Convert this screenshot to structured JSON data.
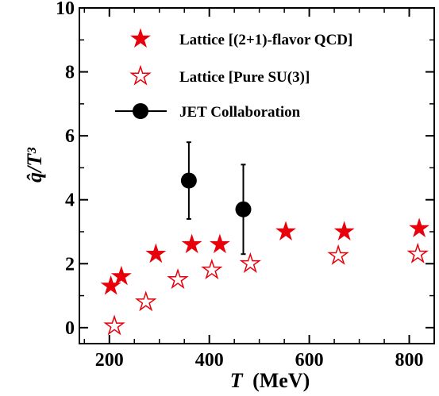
{
  "chart_data": {
    "type": "scatter",
    "xlabel_var": "T",
    "xlabel_unit": "(MeV)",
    "ylabel": "q̂/T³",
    "xlim": [
      140,
      850
    ],
    "ylim": [
      -0.5,
      10
    ],
    "xticks": [
      200,
      400,
      600,
      800
    ],
    "xtick_labels": [
      "200",
      "400",
      "600",
      "800"
    ],
    "yticks": [
      0,
      2,
      4,
      6,
      8,
      10
    ],
    "ytick_labels": [
      "0",
      "2",
      "4",
      "6",
      "8",
      "10"
    ],
    "legend_position": "top-right",
    "series": [
      {
        "name": "Lattice [(2+1)-flavor QCD]",
        "marker": "star-filled",
        "color": "#e8000b",
        "points": [
          {
            "x": 203,
            "y": 1.3
          },
          {
            "x": 224,
            "y": 1.6
          },
          {
            "x": 293,
            "y": 2.3
          },
          {
            "x": 365,
            "y": 2.6
          },
          {
            "x": 421,
            "y": 2.6
          },
          {
            "x": 553,
            "y": 3.0
          },
          {
            "x": 670,
            "y": 3.0
          },
          {
            "x": 820,
            "y": 3.1
          }
        ]
      },
      {
        "name": "Lattice [Pure SU(3)]",
        "marker": "star-open",
        "color": "#e8000b",
        "points": [
          {
            "x": 210,
            "y": 0.05
          },
          {
            "x": 273,
            "y": 0.8
          },
          {
            "x": 337,
            "y": 1.5
          },
          {
            "x": 405,
            "y": 1.8
          },
          {
            "x": 482,
            "y": 2.0
          },
          {
            "x": 658,
            "y": 2.25
          },
          {
            "x": 817,
            "y": 2.3
          }
        ]
      },
      {
        "name": "JET Collaboration",
        "marker": "circle",
        "color": "#000000",
        "points": [
          {
            "x": 359,
            "y": 4.6,
            "ylow": 3.4,
            "yhigh": 5.8
          },
          {
            "x": 468,
            "y": 3.7,
            "ylow": 2.3,
            "yhigh": 5.1
          }
        ]
      }
    ]
  }
}
